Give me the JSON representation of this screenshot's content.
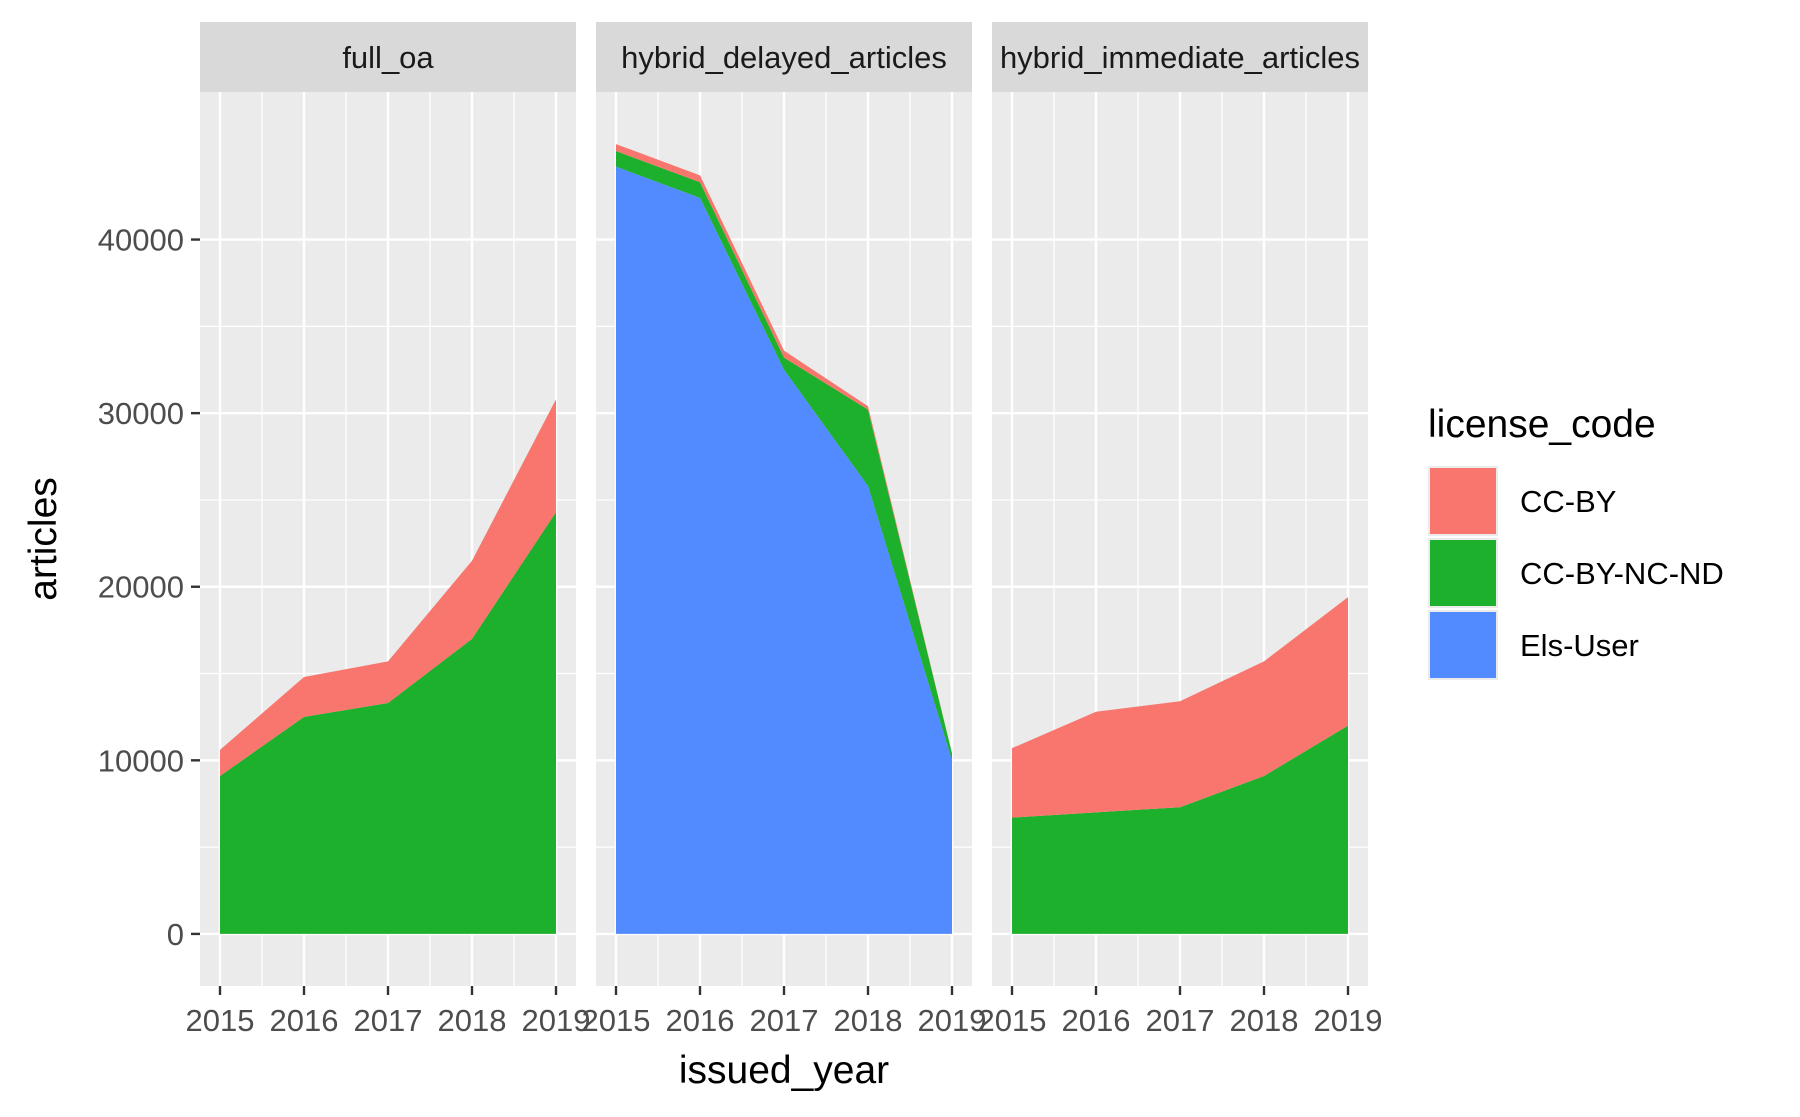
{
  "chart_data": {
    "type": "area",
    "stacked": true,
    "facet_by": "panel",
    "xlabel": "issued_year",
    "ylabel": "articles",
    "x": [
      2015,
      2016,
      2017,
      2018,
      2019
    ],
    "x_tick_labels": [
      "2015",
      "2016",
      "2017",
      "2018",
      "2019"
    ],
    "ylim": [
      -3000,
      48500
    ],
    "y_ticks": [
      0,
      10000,
      20000,
      30000,
      40000
    ],
    "y_tick_labels": [
      "0",
      "10000",
      "20000",
      "30000",
      "40000"
    ],
    "grid": true,
    "legend": {
      "title": "license_code",
      "position": "right",
      "entries": [
        {
          "label": "CC-BY",
          "color": "#F8766D"
        },
        {
          "label": "CC-BY-NC-ND",
          "color": "#1CB02C"
        },
        {
          "label": "Els-User",
          "color": "#528BFF"
        }
      ]
    },
    "stack_order": [
      "Els-User",
      "CC-BY-NC-ND",
      "CC-BY"
    ],
    "panels": [
      {
        "title": "full_oa",
        "series": [
          {
            "name": "CC-BY-NC-ND",
            "values": [
              9100,
              12500,
              13300,
              17000,
              24300
            ]
          },
          {
            "name": "CC-BY",
            "values": [
              1500,
              2300,
              2400,
              4500,
              6500
            ]
          }
        ]
      },
      {
        "title": "hybrid_delayed_articles",
        "series": [
          {
            "name": "Els-User",
            "values": [
              44200,
              42400,
              32500,
              25800,
              10000
            ]
          },
          {
            "name": "CC-BY-NC-ND",
            "values": [
              900,
              900,
              700,
              4400,
              400
            ]
          },
          {
            "name": "CC-BY",
            "values": [
              400,
              400,
              400,
              200,
              0
            ]
          }
        ]
      },
      {
        "title": "hybrid_immediate_articles",
        "series": [
          {
            "name": "CC-BY-NC-ND",
            "values": [
              6700,
              7000,
              7300,
              9100,
              12000
            ]
          },
          {
            "name": "CC-BY",
            "values": [
              4000,
              5800,
              6100,
              6600,
              7400
            ]
          }
        ]
      }
    ]
  }
}
